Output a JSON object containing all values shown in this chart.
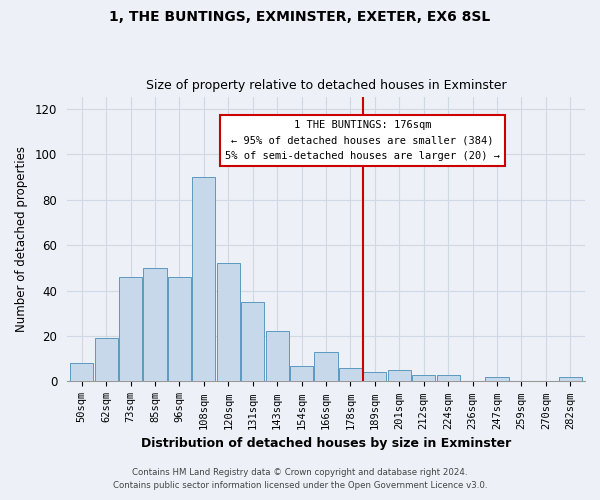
{
  "title": "1, THE BUNTINGS, EXMINSTER, EXETER, EX6 8SL",
  "subtitle": "Size of property relative to detached houses in Exminster",
  "xlabel": "Distribution of detached houses by size in Exminster",
  "ylabel": "Number of detached properties",
  "bar_color": "#c8d8eb",
  "bar_edge_color": "#5a9abf",
  "bins": [
    "50sqm",
    "62sqm",
    "73sqm",
    "85sqm",
    "96sqm",
    "108sqm",
    "120sqm",
    "131sqm",
    "143sqm",
    "154sqm",
    "166sqm",
    "178sqm",
    "189sqm",
    "201sqm",
    "212sqm",
    "224sqm",
    "236sqm",
    "247sqm",
    "259sqm",
    "270sqm",
    "282sqm"
  ],
  "values": [
    8,
    19,
    46,
    50,
    46,
    90,
    52,
    35,
    22,
    7,
    13,
    6,
    4,
    5,
    3,
    3,
    0,
    2,
    0,
    0,
    2
  ],
  "vline_x": 11.5,
  "vline_color": "#cc0000",
  "annotation_title": "1 THE BUNTINGS: 176sqm",
  "annotation_line1": "← 95% of detached houses are smaller (384)",
  "annotation_line2": "5% of semi-detached houses are larger (20) →",
  "annotation_box_color": "#ffffff",
  "annotation_box_edge": "#cc0000",
  "ylim": [
    0,
    125
  ],
  "yticks": [
    0,
    20,
    40,
    60,
    80,
    100,
    120
  ],
  "footer1": "Contains HM Land Registry data © Crown copyright and database right 2024.",
  "footer2": "Contains public sector information licensed under the Open Government Licence v3.0.",
  "background_color": "#edf1f7",
  "grid_color": "#d0d8e4"
}
